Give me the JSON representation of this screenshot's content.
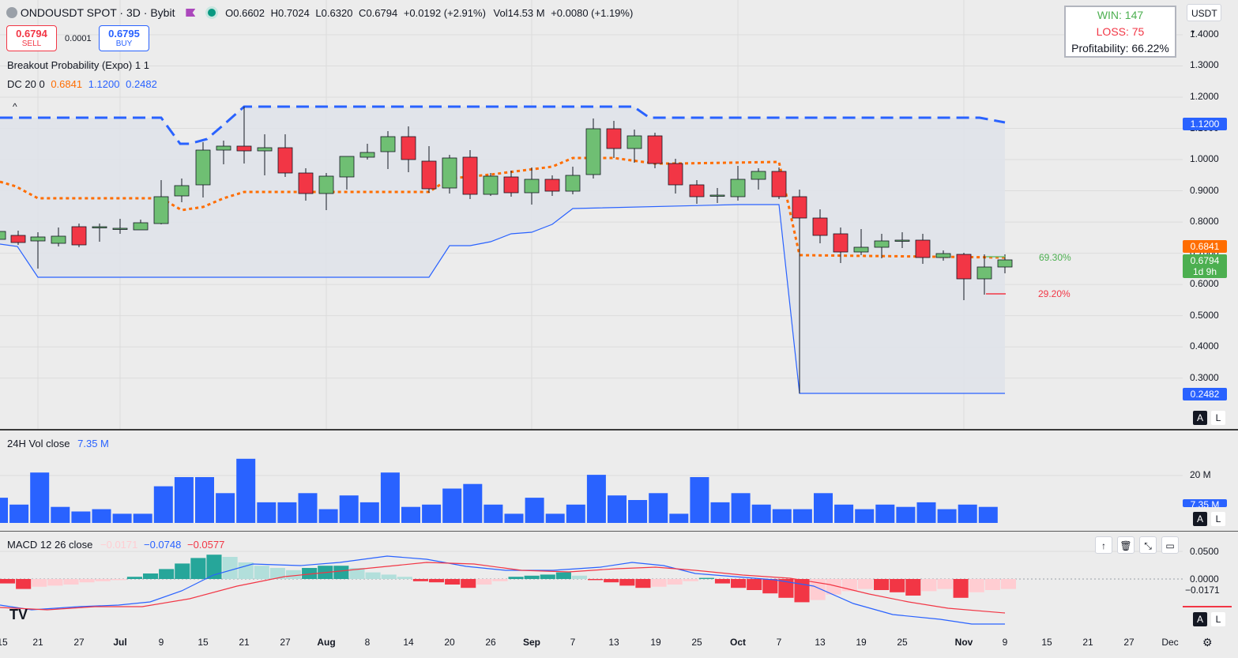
{
  "header": {
    "symbol": "ONDOUSDT SPOT",
    "interval": "3D",
    "exchange": "Bybit",
    "title_sep": " · ",
    "o_label": "O",
    "o_value": "0.6602",
    "h_label": "H",
    "h_value": "0.7024",
    "l_label": "L",
    "l_value": "0.6320",
    "c_label": "C",
    "c_value": "0.6794",
    "change": "+0.0192 (+2.91%)",
    "vol_label": "Vol",
    "vol_value": "14.53 M",
    "vol_change": "+0.0080 (+1.19%)"
  },
  "trade": {
    "sell_price": "0.6794",
    "sell_label": "SELL",
    "spread": "0.0001",
    "buy_price": "0.6795",
    "buy_label": "BUY"
  },
  "indicators": {
    "breakout": "Breakout Probability (Expo) 1 1",
    "dc_label": "DC 20 0",
    "dc_basis": "0.6841",
    "dc_upper": "1.1200",
    "dc_lower": "0.2482"
  },
  "stats": {
    "win": "WIN: 147",
    "loss": "LOSS: 75",
    "profit": "Profitability: 66.22%"
  },
  "currency": "USDT",
  "price_axis": [
    "1.4000",
    "1.3000",
    "1.2000",
    "1.1000",
    "1.0000",
    "0.9000",
    "0.8000",
    "0.7000",
    "0.6000",
    "0.5000",
    "0.4000",
    "0.3000"
  ],
  "price_tags": {
    "upper": "1.1200",
    "basis": "0.6841",
    "close": "0.6794",
    "countdown": "1d 9h",
    "lower": "0.2482"
  },
  "prob": {
    "up": "69.30%",
    "down": "29.20%"
  },
  "volume": {
    "label": "24H Vol close",
    "value": "7.35 M",
    "axis_20m": "20 M",
    "tag": "7.35 M",
    "values": [
      11,
      8,
      22,
      7,
      5,
      6,
      4,
      4,
      16,
      20,
      20,
      13,
      28,
      9,
      9,
      13,
      6,
      12,
      9,
      22,
      7,
      8,
      15,
      17,
      8,
      4,
      11,
      4,
      8,
      21,
      12,
      10,
      13,
      4,
      20,
      9,
      13,
      8,
      6,
      6,
      13,
      8,
      6,
      8,
      7,
      9,
      6,
      8,
      7
    ]
  },
  "macd": {
    "label": "MACD 12 26 close",
    "hist_val": "−0.0171",
    "macd_val": "−0.0748",
    "signal_val": "−0.0577",
    "axis": [
      "0.0500",
      "0.0000"
    ],
    "tag": "−0.0171"
  },
  "x_axis": [
    "15",
    "21",
    "27",
    "Jul",
    "9",
    "15",
    "21",
    "27",
    "Aug",
    "8",
    "14",
    "20",
    "26",
    "Sep",
    "7",
    "13",
    "19",
    "25",
    "Oct",
    "7",
    "13",
    "19",
    "25",
    "Nov",
    "9",
    "15",
    "21",
    "27",
    "Dec"
  ],
  "colors": {
    "up": "#6fbf73",
    "down": "#f23645",
    "blue": "#2962ff",
    "orange": "#ff6d00"
  }
}
